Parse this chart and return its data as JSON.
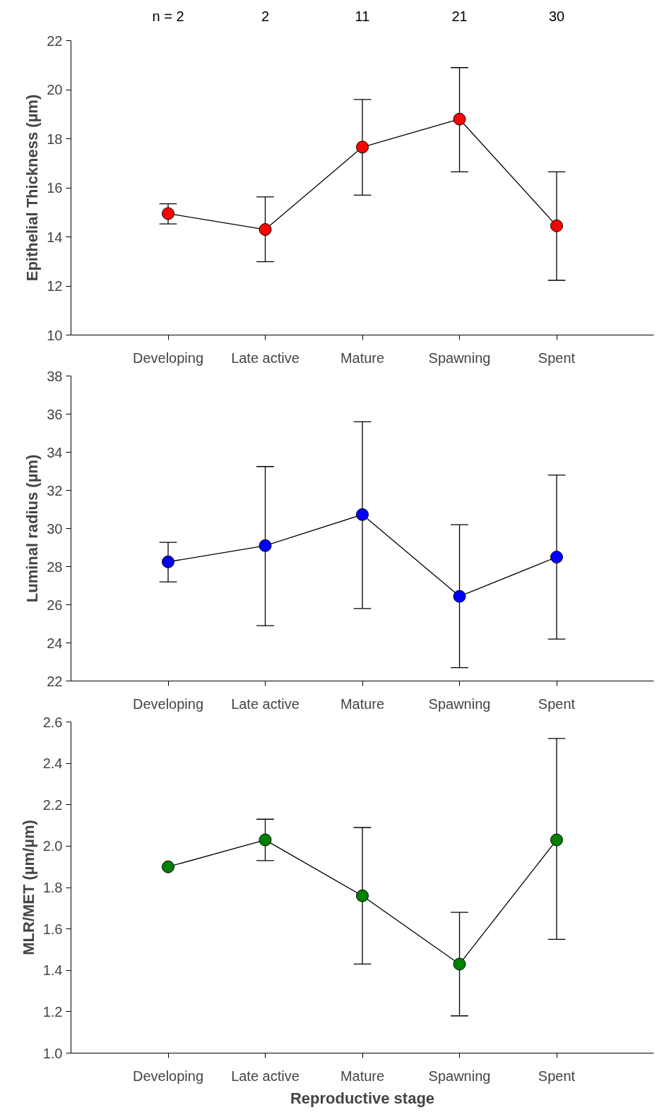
{
  "chart_data": [
    {
      "type": "line",
      "categories": [
        "Developing",
        "Late active",
        "Mature",
        "Spawning",
        "Spent"
      ],
      "ylabel": "Epithelial Thickness (µm)",
      "ylim": [
        10,
        22
      ],
      "yticks": [
        10,
        12,
        14,
        16,
        18,
        20,
        22
      ],
      "marker": "circle",
      "grid": false,
      "annotations": [
        "n = 2",
        "2",
        "11",
        "21",
        "30"
      ],
      "series": [
        {
          "color": "#ff0000",
          "values": [
            14.95,
            14.3,
            17.66,
            18.8,
            14.45
          ],
          "errors": [
            [
              14.53,
              15.35
            ],
            [
              12.99,
              15.63
            ],
            [
              15.7,
              19.6
            ],
            [
              16.65,
              20.9
            ],
            [
              12.23,
              16.65
            ]
          ]
        }
      ]
    },
    {
      "type": "line",
      "categories": [
        "Developing",
        "Late active",
        "Mature",
        "Spawning",
        "Spent"
      ],
      "ylabel": "Luminal radius (µm)",
      "ylim": [
        22,
        38
      ],
      "yticks": [
        22,
        24,
        26,
        28,
        30,
        32,
        34,
        36,
        38
      ],
      "marker": "circle",
      "grid": false,
      "series": [
        {
          "color": "#0000ff",
          "values": [
            28.25,
            29.1,
            30.73,
            26.44,
            28.5
          ],
          "errors": [
            [
              27.2,
              29.27
            ],
            [
              24.9,
              33.25
            ],
            [
              25.8,
              35.6
            ],
            [
              22.7,
              30.2
            ],
            [
              24.2,
              32.8
            ]
          ]
        }
      ]
    },
    {
      "type": "line",
      "categories": [
        "Developing",
        "Late active",
        "Mature",
        "Spawning",
        "Spent"
      ],
      "ylabel": "MLR/MET (µm/µm)",
      "xlabel": "Reproductive stage",
      "ylim": [
        1.0,
        2.6
      ],
      "yticks": [
        {
          "value": 1.0,
          "label": "1.0"
        },
        1.2,
        1.4,
        1.6,
        1.8,
        {
          "value": 2.0,
          "label": "2.0"
        },
        2.2,
        2.4,
        2.6
      ],
      "marker": "circle",
      "grid": false,
      "series": [
        {
          "color": "#008000",
          "values": [
            1.9,
            2.03,
            1.76,
            1.43,
            2.03
          ],
          "errors": [
            null,
            [
              1.93,
              2.13
            ],
            [
              1.43,
              2.09
            ],
            [
              1.18,
              1.68
            ],
            [
              1.55,
              2.52
            ]
          ]
        }
      ]
    }
  ]
}
